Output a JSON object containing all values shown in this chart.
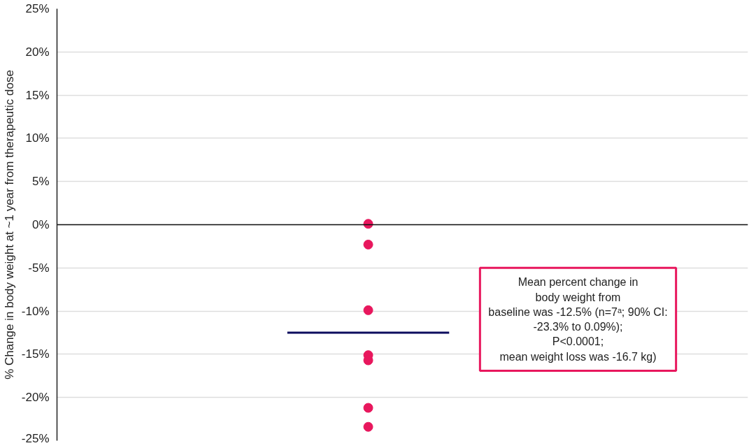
{
  "chart_data": {
    "type": "scatter",
    "ylabel": "% Change in body weight at ~1 year from therapeutic dose",
    "categories": [
      null
    ],
    "series": [
      {
        "color": "#e8175d",
        "x": [
          null,
          null,
          null,
          null,
          null,
          null,
          null
        ],
        "values": [
          0.1,
          -2.3,
          -9.9,
          -15.1,
          -15.7,
          -21.2,
          -23.4
        ]
      }
    ],
    "ylim": [
      -25,
      25
    ],
    "yticks": [
      {
        "value": -25,
        "label": "-25%"
      },
      {
        "value": -20,
        "label": "-20%"
      },
      {
        "value": -15,
        "label": "-15%"
      },
      {
        "value": -10,
        "label": "-10%"
      },
      {
        "value": -5,
        "label": "-5%"
      },
      {
        "value": 0,
        "label": "0%"
      },
      {
        "value": 5,
        "label": "5%"
      },
      {
        "value": 10,
        "label": "10%"
      },
      {
        "value": 15,
        "label": "15%"
      },
      {
        "value": 20,
        "label": "20%"
      },
      {
        "value": 25,
        "label": "25%"
      }
    ],
    "grid": "y",
    "marker": "circle",
    "tick_labels": "y",
    "ref_lines": [
      {
        "axis": "y",
        "value": -12.5,
        "color": "#0d0d5e"
      }
    ],
    "annotations": [
      "Mean percent change in\nbody weight from\nbaseline was -12.5% (n=7ᵃ; 90% CI:\n-23.3% to 0.09%);\nP<0.0001;\nmean weight loss was -16.7 kg)"
    ]
  }
}
